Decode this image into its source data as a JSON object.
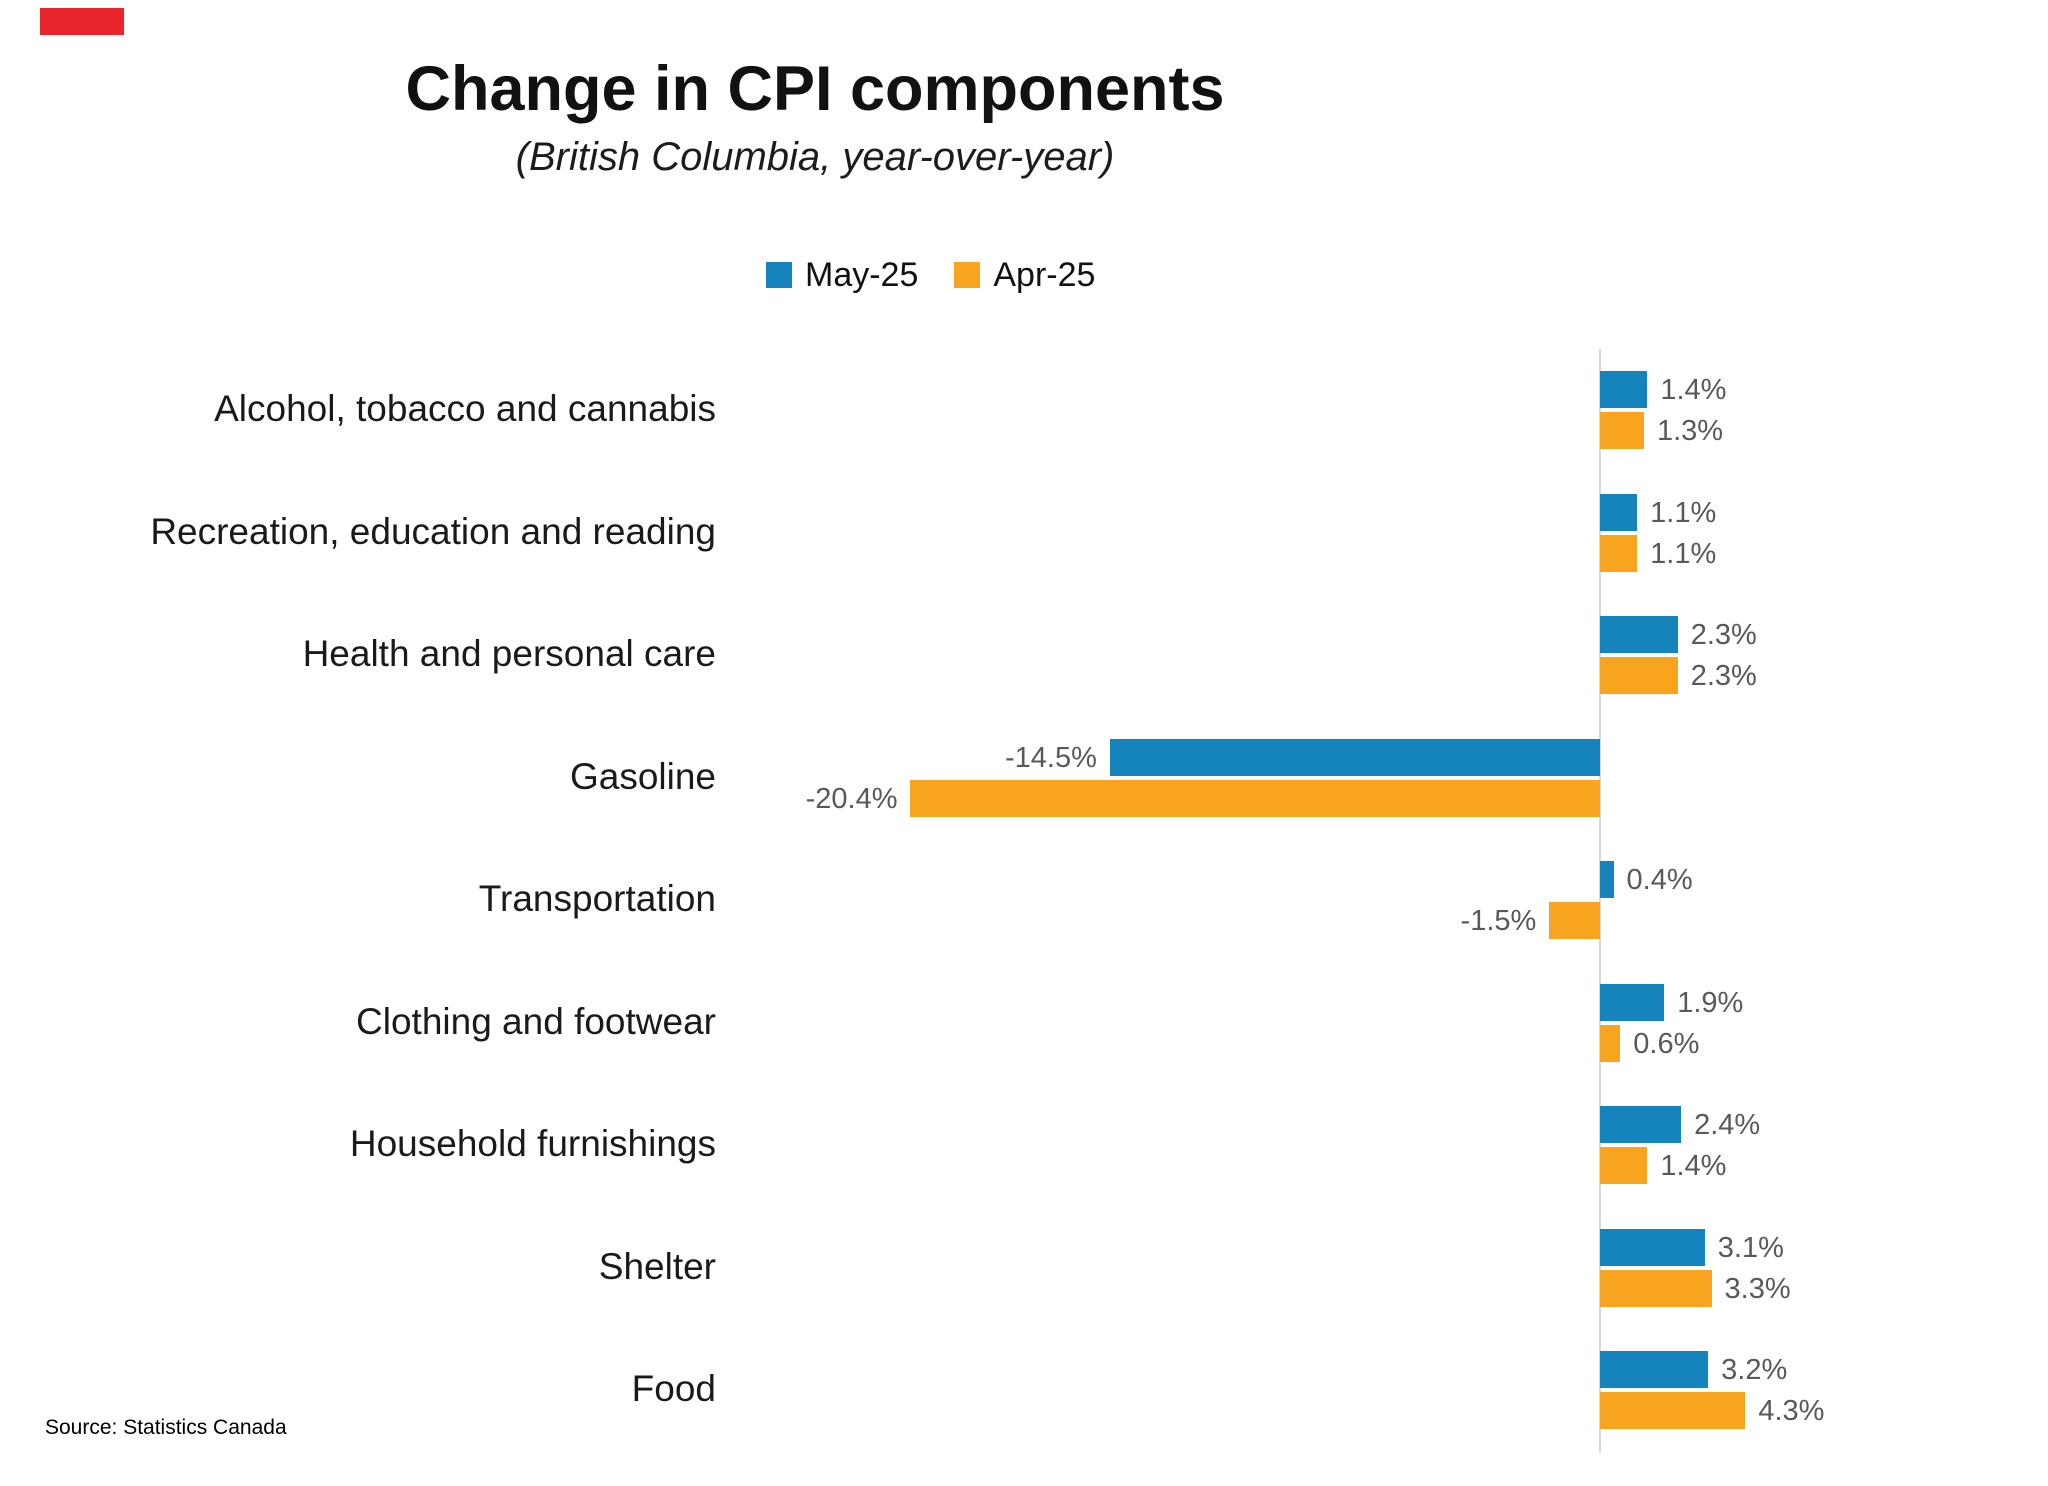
{
  "header": {
    "title": "Change in CPI components",
    "subtitle": "(British Columbia, year-over-year)"
  },
  "source": "Source: Statistics Canada",
  "colors": {
    "may": "#1583BC",
    "apr": "#F8A41F",
    "data_label": "#595959",
    "axis_line": "#D9D9D9",
    "brand_red": "#E8252A",
    "title_text": "#111111"
  },
  "chart_data": {
    "type": "bar",
    "orientation": "horizontal",
    "title": "Change in CPI components",
    "subtitle": "(British Columbia, year-over-year)",
    "xlabel": "",
    "ylabel": "",
    "xlim": [
      -25,
      7
    ],
    "grid": false,
    "legend_position": "top",
    "value_unit": "%",
    "categories": [
      "Alcohol, tobacco and cannabis",
      "Recreation, education and reading",
      "Health and personal care",
      "Gasoline",
      "Transportation",
      "Clothing and footwear",
      "Household furnishings",
      "Shelter",
      "Food"
    ],
    "series": [
      {
        "name": "May-25",
        "color_key": "may",
        "values": [
          1.4,
          1.1,
          2.3,
          -14.5,
          0.4,
          1.9,
          2.4,
          3.1,
          3.2
        ],
        "labels": [
          "1.4%",
          "1.1%",
          "2.3%",
          "-14.5%",
          "0.4%",
          "1.9%",
          "2.4%",
          "3.1%",
          "3.2%"
        ]
      },
      {
        "name": "Apr-25",
        "color_key": "apr",
        "values": [
          1.3,
          1.1,
          2.3,
          -20.4,
          -1.5,
          0.6,
          1.4,
          3.3,
          4.3
        ],
        "labels": [
          "1.3%",
          "1.1%",
          "2.3%",
          "-20.4%",
          "-1.5%",
          "0.6%",
          "1.4%",
          "3.3%",
          "4.3%"
        ]
      }
    ]
  }
}
